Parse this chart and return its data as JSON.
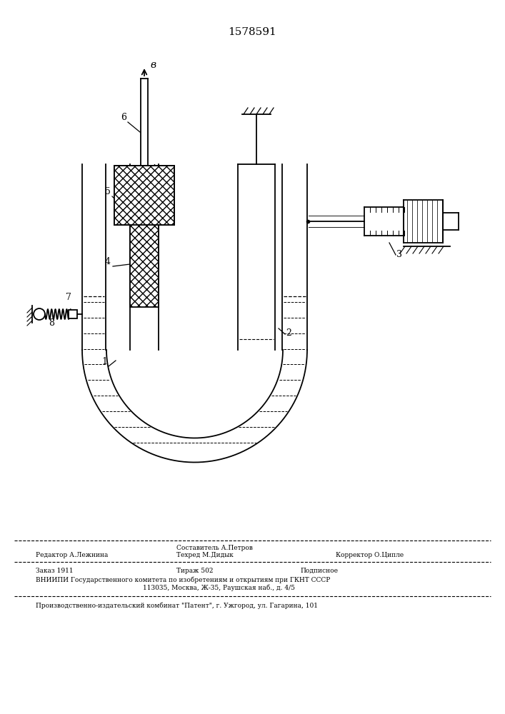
{
  "patent_number": "1578591",
  "bg": "#ffffff",
  "lc": "#000000",
  "footer_editor": "Редактор А.Лежнина",
  "footer_compiler": "Составитель А.Петров",
  "footer_tech": "Техред М.Дидык",
  "footer_corrector": "Корректор О.Ципле",
  "footer_order": "Заказ 1911",
  "footer_copies": "Тираж 502",
  "footer_subscription": "Подписное",
  "footer_vniipи": "ВНИИПИ Государственного комитета по изобретениям и открытиям при ГКНТ СССР",
  "footer_address": "113035, Москва, Ж-35, Раушская наб., д. 4/5",
  "footer_publisher": "Производственно-издательский комбинат \"Патент\", г. Ужгород, ул. Гагарина, 101"
}
